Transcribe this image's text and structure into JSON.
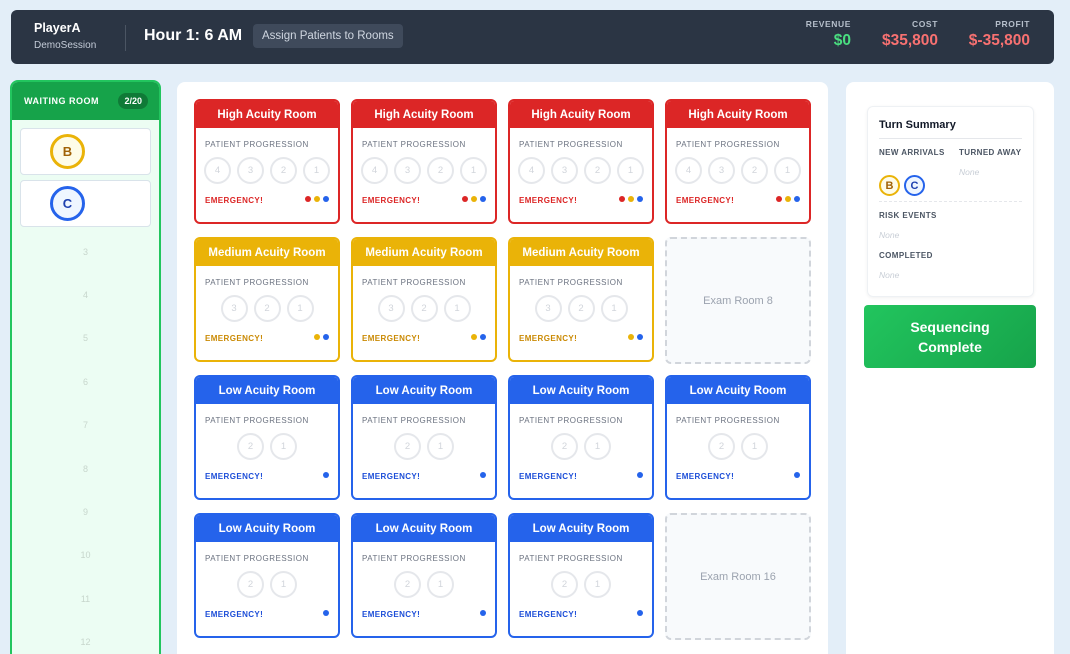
{
  "header": {
    "player": "PlayerA",
    "session": "DemoSession",
    "hour": "Hour 1: 6 AM",
    "phase": "Assign Patients to Rooms",
    "revenue_label": "REVENUE",
    "revenue": "$0",
    "cost_label": "COST",
    "cost": "$35,800",
    "profit_label": "PROFIT",
    "profit": "$-35,800"
  },
  "waiting_room": {
    "title": "WAITING ROOM",
    "count": "2/20",
    "patients": [
      {
        "letter": "B",
        "acuity": "medium"
      },
      {
        "letter": "C",
        "acuity": "low"
      }
    ],
    "empty_slots": [
      "3",
      "4",
      "5",
      "6",
      "7",
      "8",
      "9",
      "10",
      "11",
      "12"
    ]
  },
  "rooms": [
    {
      "type": "high",
      "title": "High Acuity Room",
      "progression_label": "PATIENT PROGRESSION",
      "steps": [
        "4",
        "3",
        "2",
        "1"
      ],
      "emergency": "EMERGENCY!",
      "dots": [
        "red",
        "yellow",
        "blue"
      ]
    },
    {
      "type": "high",
      "title": "High Acuity Room",
      "progression_label": "PATIENT PROGRESSION",
      "steps": [
        "4",
        "3",
        "2",
        "1"
      ],
      "emergency": "EMERGENCY!",
      "dots": [
        "red",
        "yellow",
        "blue"
      ]
    },
    {
      "type": "high",
      "title": "High Acuity Room",
      "progression_label": "PATIENT PROGRESSION",
      "steps": [
        "4",
        "3",
        "2",
        "1"
      ],
      "emergency": "EMERGENCY!",
      "dots": [
        "red",
        "yellow",
        "blue"
      ]
    },
    {
      "type": "high",
      "title": "High Acuity Room",
      "progression_label": "PATIENT PROGRESSION",
      "steps": [
        "4",
        "3",
        "2",
        "1"
      ],
      "emergency": "EMERGENCY!",
      "dots": [
        "red",
        "yellow",
        "blue"
      ]
    },
    {
      "type": "med",
      "title": "Medium Acuity Room",
      "progression_label": "PATIENT PROGRESSION",
      "steps": [
        "3",
        "2",
        "1"
      ],
      "emergency": "EMERGENCY!",
      "dots": [
        "yellow",
        "blue"
      ]
    },
    {
      "type": "med",
      "title": "Medium Acuity Room",
      "progression_label": "PATIENT PROGRESSION",
      "steps": [
        "3",
        "2",
        "1"
      ],
      "emergency": "EMERGENCY!",
      "dots": [
        "yellow",
        "blue"
      ]
    },
    {
      "type": "med",
      "title": "Medium Acuity Room",
      "progression_label": "PATIENT PROGRESSION",
      "steps": [
        "3",
        "2",
        "1"
      ],
      "emergency": "EMERGENCY!",
      "dots": [
        "yellow",
        "blue"
      ]
    },
    {
      "type": "exam",
      "title": "Exam Room 8"
    },
    {
      "type": "low",
      "title": "Low Acuity Room",
      "progression_label": "PATIENT PROGRESSION",
      "steps": [
        "2",
        "1"
      ],
      "emergency": "EMERGENCY!",
      "dots": [
        "blue"
      ]
    },
    {
      "type": "low",
      "title": "Low Acuity Room",
      "progression_label": "PATIENT PROGRESSION",
      "steps": [
        "2",
        "1"
      ],
      "emergency": "EMERGENCY!",
      "dots": [
        "blue"
      ]
    },
    {
      "type": "low",
      "title": "Low Acuity Room",
      "progression_label": "PATIENT PROGRESSION",
      "steps": [
        "2",
        "1"
      ],
      "emergency": "EMERGENCY!",
      "dots": [
        "blue"
      ]
    },
    {
      "type": "low",
      "title": "Low Acuity Room",
      "progression_label": "PATIENT PROGRESSION",
      "steps": [
        "2",
        "1"
      ],
      "emergency": "EMERGENCY!",
      "dots": [
        "blue"
      ]
    },
    {
      "type": "low",
      "title": "Low Acuity Room",
      "progression_label": "PATIENT PROGRESSION",
      "steps": [
        "2",
        "1"
      ],
      "emergency": "EMERGENCY!",
      "dots": [
        "blue"
      ]
    },
    {
      "type": "low",
      "title": "Low Acuity Room",
      "progression_label": "PATIENT PROGRESSION",
      "steps": [
        "2",
        "1"
      ],
      "emergency": "EMERGENCY!",
      "dots": [
        "blue"
      ]
    },
    {
      "type": "low",
      "title": "Low Acuity Room",
      "progression_label": "PATIENT PROGRESSION",
      "steps": [
        "2",
        "1"
      ],
      "emergency": "EMERGENCY!",
      "dots": [
        "blue"
      ]
    },
    {
      "type": "exam",
      "title": "Exam Room 16"
    }
  ],
  "turn_summary": {
    "title": "Turn Summary",
    "new_arrivals_label": "NEW ARRIVALS",
    "new_arrivals": [
      "B",
      "C"
    ],
    "turned_away_label": "TURNED AWAY",
    "turned_away": "None",
    "risk_events_label": "RISK EVENTS",
    "risk_events": "None",
    "completed_label": "COMPLETED",
    "completed": "None"
  },
  "sequencing_button": "Sequencing Complete",
  "colors": {
    "high": "#dc2626",
    "medium": "#eab308",
    "low": "#2563eb",
    "green": "#16a34a"
  }
}
